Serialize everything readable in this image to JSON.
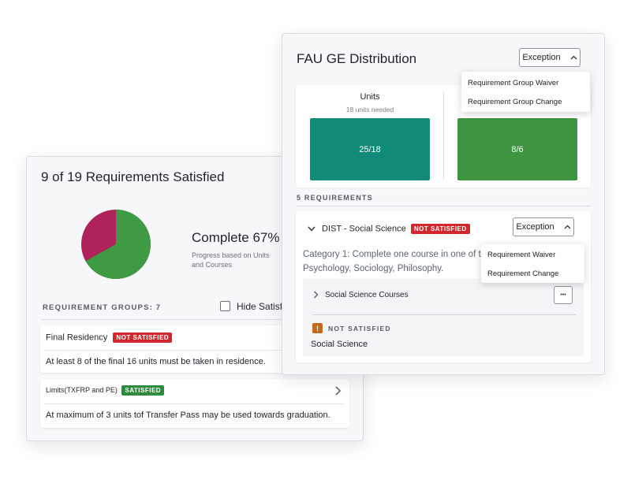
{
  "left_card": {
    "title": "9 of 19 Requirements Satisfied",
    "complete_label": "Complete 67%",
    "complete_fraction": 0.67,
    "progress_caption_line1": "Progress based on Units",
    "progress_caption_line2": "and Courses",
    "groups_label": "REQUIREMENT GROUPS: 7",
    "hide_satisfied_label": "Hide Satisfi",
    "rows": [
      {
        "title": "Final Residency",
        "status": "NOT SATISFIED",
        "description": "At least 8 of the final 16 units must be taken in residence."
      },
      {
        "title": "Limits(TXFRP and PE)",
        "status": "SATISFIED",
        "description": "At maximum of 3 units tof Transfer Pass may be used towards graduation."
      }
    ]
  },
  "right_card": {
    "title": "FAU GE Distribution",
    "exception_label": "Exception",
    "group_menu": [
      "Requirement Group Waiver",
      "Requirement Group Change"
    ],
    "units_title": "Units",
    "units_subtitle": "18 units needed",
    "units_value": "25/18",
    "courses_value": "8/6",
    "requirements_label": "5 REQUIREMENTS",
    "requirement": {
      "title": "DIST - Social Science",
      "status": "NOT SATISFIED",
      "exception_label": "Exception",
      "menu": [
        "Requirement Waiver",
        "Requirement Change"
      ],
      "description_line1": "Category 1: Complete one course in one of the",
      "description_line2": "Psychology, Sociology, Philosophy.",
      "subgroup_label": "Social Science Courses",
      "more_glyph": "•••",
      "warning_glyph": "!",
      "warning_status": "NOT SATISFIED",
      "warning_subject": "Social Science"
    }
  },
  "colors": {
    "pie_green": "#3f9a44",
    "pie_magenta": "#b0225a",
    "teal": "#128a78",
    "green": "#3e9440",
    "not_satisfied": "#d3262f",
    "satisfied": "#2e8b3e",
    "warning": "#c26a1d"
  },
  "icons": {
    "chevron_up": "chevron-up-icon",
    "chevron_down": "chevron-down-icon",
    "chevron_right": "chevron-right-icon",
    "more": "more-icon",
    "warning": "warning-icon",
    "checkbox": "checkbox-icon"
  }
}
